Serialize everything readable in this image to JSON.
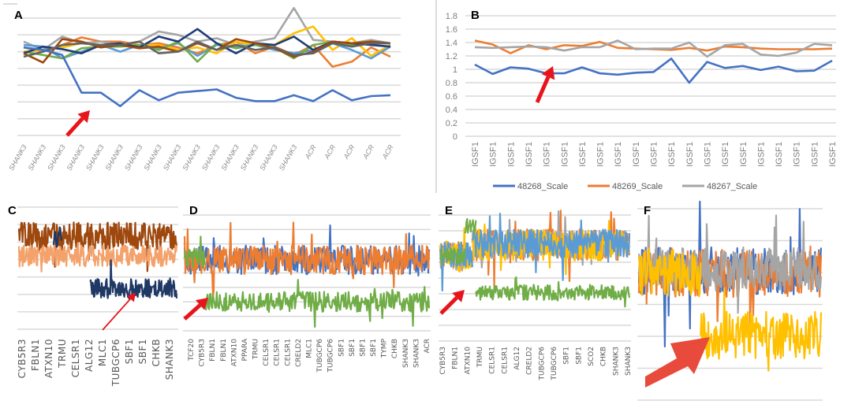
{
  "figure": {
    "panel_letters": [
      "A",
      "B",
      "C",
      "D",
      "E",
      "F"
    ]
  },
  "chart_data": [
    {
      "panel": "A",
      "type": "line",
      "categories": [
        "SHANK3",
        "SHANK3",
        "SHANK3",
        "SHANK3",
        "SHANK3",
        "SHANK3",
        "SHANK3",
        "SHANK3",
        "SHANK3",
        "SHANK3",
        "SHANK3",
        "SHANK3",
        "SHANK3",
        "SHANK3",
        "SHANK3",
        "ACR",
        "ACR",
        "ACR",
        "ACR",
        "ACR"
      ],
      "ylim": [
        0,
        1.4
      ],
      "grid": true,
      "annotation": "red arrow marking the outlier (blue) series",
      "series": [
        {
          "name": "orange",
          "color": "#ed7d31",
          "values": [
            1.05,
            1.0,
            1.08,
            1.17,
            1.12,
            1.12,
            1.08,
            1.1,
            1.05,
            0.98,
            1.08,
            1.12,
            0.98,
            1.06,
            0.96,
            1.08,
            0.82,
            0.88,
            1.05,
            0.94
          ]
        },
        {
          "name": "gray",
          "color": "#a5a5a5",
          "values": [
            1.12,
            1.02,
            1.18,
            1.1,
            1.12,
            1.08,
            1.12,
            1.24,
            1.2,
            1.12,
            1.16,
            1.08,
            1.12,
            1.16,
            1.52,
            1.14,
            1.12,
            1.1,
            1.14,
            1.1
          ]
        },
        {
          "name": "yellow",
          "color": "#ffc000",
          "values": [
            1.0,
            1.02,
            1.05,
            1.1,
            1.08,
            1.1,
            1.08,
            1.08,
            1.02,
            1.05,
            0.98,
            1.12,
            1.08,
            1.08,
            1.22,
            1.3,
            1.02,
            1.16,
            0.95,
            1.08
          ]
        },
        {
          "name": "light-blue",
          "color": "#5b9bd5",
          "values": [
            1.08,
            1.06,
            0.92,
            1.0,
            1.08,
            1.0,
            1.08,
            1.04,
            1.1,
            0.95,
            1.08,
            1.06,
            1.08,
            1.02,
            0.98,
            1.02,
            1.1,
            1.02,
            0.92,
            1.06
          ]
        },
        {
          "name": "green",
          "color": "#70ad47",
          "values": [
            1.0,
            0.96,
            0.92,
            1.04,
            1.06,
            1.06,
            1.08,
            1.02,
            1.12,
            0.88,
            1.1,
            1.04,
            1.08,
            1.05,
            0.92,
            1.08,
            1.12,
            1.08,
            1.1,
            1.1
          ]
        },
        {
          "name": "navy",
          "color": "#1f3c78",
          "values": [
            0.98,
            1.06,
            1.03,
            0.98,
            1.08,
            1.1,
            1.05,
            1.18,
            1.12,
            1.27,
            1.1,
            0.98,
            1.1,
            1.08,
            1.18,
            1.02,
            1.12,
            1.1,
            1.08,
            1.06
          ]
        },
        {
          "name": "brown",
          "color": "#9e480e",
          "values": [
            0.98,
            0.87,
            1.15,
            1.12,
            1.05,
            1.08,
            1.04,
            1.06,
            1.0,
            1.1,
            1.02,
            1.15,
            1.1,
            1.04,
            0.94,
            1.0,
            1.12,
            1.1,
            1.12,
            1.1
          ]
        },
        {
          "name": "dark-gray",
          "color": "#636363",
          "values": [
            0.94,
            1.0,
            1.08,
            1.1,
            1.08,
            1.08,
            1.12,
            0.98,
            1.0,
            1.12,
            1.02,
            1.08,
            1.02,
            1.05,
            0.96,
            0.98,
            1.1,
            1.06,
            1.1,
            1.1
          ]
        },
        {
          "name": "blue-outlier",
          "color": "#4472c4",
          "values": [
            1.05,
            1.02,
            0.96,
            0.51,
            0.51,
            0.35,
            0.54,
            0.42,
            0.51,
            0.53,
            0.55,
            0.45,
            0.41,
            0.41,
            0.48,
            0.41,
            0.54,
            0.42,
            0.47,
            0.48
          ]
        }
      ]
    },
    {
      "panel": "B",
      "type": "line",
      "categories": [
        "IGSF1",
        "IGSF1",
        "IGSF1",
        "IGSF1",
        "IGSF1",
        "IGSF1",
        "IGSF1",
        "IGSF1",
        "IGSF1",
        "IGSF1",
        "IGSF1",
        "IGSF1",
        "IGSF1",
        "IGSF1",
        "IGSF1",
        "IGSF1",
        "IGSF1",
        "IGSF1",
        "IGSF1",
        "IGSF1",
        "IGSF1"
      ],
      "ylim": [
        0,
        1.8
      ],
      "yticks": [
        "0",
        "0.2",
        "0.4",
        "0.6",
        "0.8",
        "1",
        "1.2",
        "1.4",
        "1.6",
        "1.8"
      ],
      "grid": true,
      "legend_position": "bottom",
      "annotation": "red arrow marking the 48268_Scale series",
      "series": [
        {
          "name": "48268_Scale",
          "color": "#4472c4",
          "values": [
            1.07,
            0.93,
            1.03,
            1.01,
            0.94,
            0.94,
            1.03,
            0.94,
            0.92,
            0.95,
            0.96,
            1.16,
            0.8,
            1.11,
            1.02,
            1.05,
            0.99,
            1.04,
            0.97,
            0.98,
            1.13
          ]
        },
        {
          "name": "48269_Scale",
          "color": "#ed7d31",
          "values": [
            1.43,
            1.37,
            1.24,
            1.36,
            1.3,
            1.36,
            1.35,
            1.41,
            1.32,
            1.31,
            1.3,
            1.29,
            1.32,
            1.28,
            1.34,
            1.33,
            1.31,
            1.3,
            1.3,
            1.3,
            1.31
          ]
        },
        {
          "name": "48267_Scale",
          "color": "#a5a5a5",
          "values": [
            1.33,
            1.32,
            1.33,
            1.34,
            1.33,
            1.28,
            1.33,
            1.33,
            1.43,
            1.3,
            1.31,
            1.31,
            1.4,
            1.19,
            1.36,
            1.38,
            1.22,
            1.2,
            1.25,
            1.38,
            1.36
          ]
        }
      ]
    },
    {
      "panel": "C",
      "type": "line",
      "categories": [
        "CYB5R3",
        "FBLN1",
        "ATXN10",
        "TRMU",
        "CELSR1",
        "ALG12",
        "MLC1",
        "TUBGCP6",
        "SBF1",
        "SBF1",
        "CHKB",
        "SHANK3"
      ],
      "ylim": [
        0,
        8
      ],
      "grid": true,
      "points": 260,
      "series": [
        {
          "name": "brown",
          "color": "#9e480e",
          "noise": 0.9,
          "spike": 1.6,
          "segments": [
            [
              0,
              1,
              6.1
            ]
          ]
        },
        {
          "name": "light-orange",
          "color": "#f4a26b",
          "noise": 0.7,
          "spike": 1.5,
          "segments": [
            [
              0,
              1,
              4.8
            ]
          ]
        },
        {
          "name": "navy",
          "color": "#1f3864",
          "noise": 0.7,
          "spike": 1.8,
          "segments": [
            [
              0.22,
              0.27,
              6.0
            ],
            [
              0.45,
              1,
              2.7
            ]
          ]
        }
      ]
    },
    {
      "panel": "D",
      "type": "line",
      "categories": [
        "TCF20",
        "CYB5R3",
        "FBLN1",
        "FBLN1",
        "ATXN10",
        "PPARA",
        "TRMU",
        "CELSR1",
        "CELSR1",
        "CELSR1",
        "CRELD2",
        "MLC1",
        "TUBGCP6",
        "TUBGCP6",
        "SBF1",
        "SBF1",
        "SBF1",
        "SBF1",
        "TYMP",
        "CHKB",
        "SHANK3",
        "SHANK3",
        "ACR"
      ],
      "ylim": [
        0,
        8
      ],
      "grid": true,
      "points": 320,
      "series": [
        {
          "name": "blue",
          "color": "#4472c4",
          "noise": 1.0,
          "spike": 2.5,
          "segments": [
            [
              0,
              1,
              4.9
            ]
          ]
        },
        {
          "name": "orange",
          "color": "#ed7d31",
          "noise": 1.0,
          "spike": 2.5,
          "segments": [
            [
              0,
              1,
              4.9
            ]
          ]
        },
        {
          "name": "green",
          "color": "#70ad47",
          "noise": 0.7,
          "spike": 1.5,
          "segments": [
            [
              0,
              0.08,
              5.0
            ],
            [
              0.08,
              1,
              2.0
            ]
          ]
        }
      ]
    },
    {
      "panel": "E",
      "type": "line",
      "categories": [
        "CYB5R3",
        "FBLN1",
        "ATXN10",
        "TRMU",
        "CELSR1",
        "CELSR1",
        "ALG12",
        "CRELD2",
        "TUBGCP6",
        "TUBGCP6",
        "SBF1",
        "SBF1",
        "SCO2",
        "CHKB",
        "SHANK3",
        "SHANK3"
      ],
      "ylim": [
        0,
        8
      ],
      "grid": true,
      "points": 260,
      "series": [
        {
          "name": "orange",
          "color": "#ed7d31",
          "noise": 1.0,
          "spike": 2.0,
          "segments": [
            [
              0,
              0.17,
              5.4
            ],
            [
              0.17,
              1,
              6.1
            ]
          ]
        },
        {
          "name": "gray",
          "color": "#a5a5a5",
          "noise": 0.9,
          "spike": 1.8,
          "segments": [
            [
              0,
              0.17,
              5.4
            ],
            [
              0.17,
              1,
              6.1
            ]
          ]
        },
        {
          "name": "yellow",
          "color": "#ffc000",
          "noise": 1.0,
          "spike": 2.0,
          "segments": [
            [
              0,
              0.17,
              5.4
            ],
            [
              0.17,
              1,
              6.1
            ]
          ]
        },
        {
          "name": "light-blue",
          "color": "#5b9bd5",
          "noise": 0.9,
          "spike": 1.8,
          "segments": [
            [
              0,
              0.17,
              5.4
            ],
            [
              0.17,
              1,
              6.2
            ]
          ]
        },
        {
          "name": "green",
          "color": "#70ad47",
          "noise": 0.5,
          "spike": 1.0,
          "segments": [
            [
              0,
              0.13,
              5.4
            ],
            [
              0.13,
              0.19,
              7.3
            ],
            [
              0.19,
              1,
              3.1
            ]
          ]
        }
      ]
    },
    {
      "panel": "F",
      "type": "line",
      "categories": [],
      "ylim": [
        0,
        8
      ],
      "grid": true,
      "points": 240,
      "series": [
        {
          "name": "blue",
          "color": "#4472c4",
          "noise": 1.0,
          "spike": 2.5,
          "segments": [
            [
              0,
              1,
              5.4
            ]
          ]
        },
        {
          "name": "orange",
          "color": "#ed7d31",
          "noise": 1.0,
          "spike": 2.5,
          "segments": [
            [
              0,
              1,
              5.3
            ]
          ]
        },
        {
          "name": "gray",
          "color": "#a5a5a5",
          "noise": 0.9,
          "spike": 2.0,
          "segments": [
            [
              0,
              1,
              5.5
            ]
          ]
        },
        {
          "name": "yellow",
          "color": "#ffc000",
          "noise": 1.0,
          "spike": 1.8,
          "segments": [
            [
              0,
              0.34,
              5.3
            ],
            [
              0.34,
              1,
              2.7
            ]
          ]
        }
      ]
    }
  ]
}
